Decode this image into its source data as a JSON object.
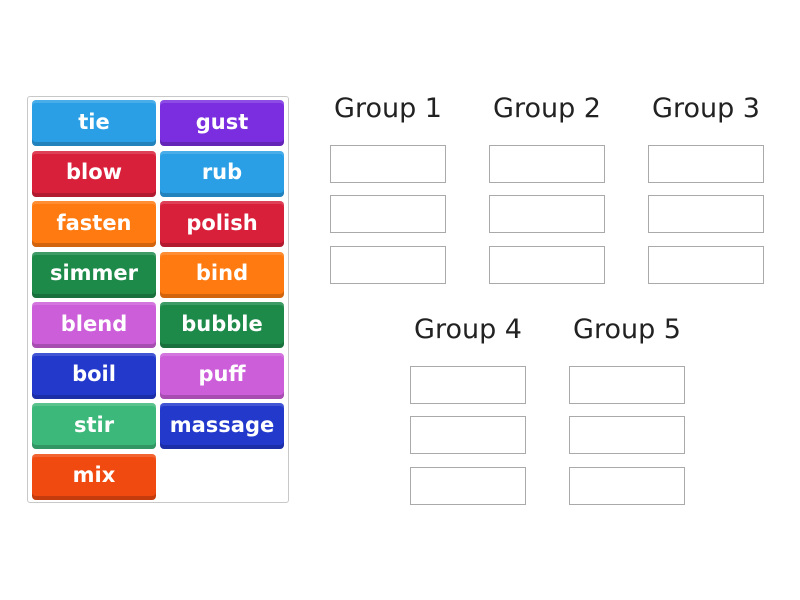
{
  "tiles": [
    {
      "label": "tie",
      "color": "#2a9fe6"
    },
    {
      "label": "gust",
      "color": "#7a2ee0"
    },
    {
      "label": "blow",
      "color": "#d9203a"
    },
    {
      "label": "rub",
      "color": "#2a9fe6"
    },
    {
      "label": "fasten",
      "color": "#ff7a10"
    },
    {
      "label": "polish",
      "color": "#d9203a"
    },
    {
      "label": "simmer",
      "color": "#1e8a4a"
    },
    {
      "label": "bind",
      "color": "#ff7a10"
    },
    {
      "label": "blend",
      "color": "#cc5ed9"
    },
    {
      "label": "bubble",
      "color": "#1e8a4a"
    },
    {
      "label": "boil",
      "color": "#2239cc"
    },
    {
      "label": "puff",
      "color": "#cc5ed9"
    },
    {
      "label": "stir",
      "color": "#3cb87a"
    },
    {
      "label": "massage",
      "color": "#2239cc"
    },
    {
      "label": "mix",
      "color": "#f04a10"
    }
  ],
  "groups": [
    {
      "title": "Group 1"
    },
    {
      "title": "Group 2"
    },
    {
      "title": "Group 3"
    },
    {
      "title": "Group 4"
    },
    {
      "title": "Group 5"
    }
  ]
}
